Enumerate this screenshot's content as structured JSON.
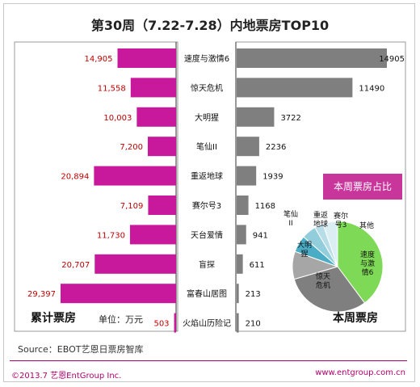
{
  "title": "第30周（7.22-7.28）内地票房TOP10",
  "left_caption": "累计票房",
  "unit": "单位：万元",
  "right_caption": "本周票房",
  "pie_title": "本周票房占比",
  "source": "Source：EBOT艺恩日票房智库",
  "copyright": "©2013.7 艺恩EntGroup Inc.",
  "website": "www.entgroup.com.cn",
  "colors": {
    "left_bar": "#c8189c",
    "right_bar": "#7f7f7f",
    "value_left": "#c00000",
    "footer": "#b0006e"
  },
  "chart_data": [
    {
      "type": "bar",
      "orientation": "horizontal",
      "caption": "累计票房",
      "categories": [
        "速度与激情6",
        "惊天危机",
        "大明猩",
        "笔仙II",
        "重返地球",
        "赛尔号3",
        "天台爱情",
        "盲探",
        "富春山居图",
        "火焰山历险记"
      ],
      "values": [
        14905,
        11558,
        10003,
        7200,
        20894,
        7109,
        11730,
        20707,
        29397,
        503
      ],
      "value_labels": [
        "14,905",
        "11,558",
        "10,003",
        "7,200",
        "20,894",
        "7,109",
        "11,730",
        "20,707",
        "29,397",
        "503"
      ]
    },
    {
      "type": "bar",
      "orientation": "horizontal",
      "caption": "本周票房",
      "categories": [
        "速度与激情6",
        "惊天危机",
        "大明猩",
        "笔仙II",
        "重返地球",
        "赛尔号3",
        "天台爱情",
        "盲探",
        "富春山居图",
        "火焰山历险记"
      ],
      "values": [
        14905,
        11490,
        3722,
        2236,
        1939,
        1168,
        941,
        611,
        213,
        210
      ],
      "value_labels": [
        "14905",
        "11490",
        "3722",
        "2236",
        "1939",
        "1168",
        "941",
        "611",
        "213",
        "210"
      ]
    },
    {
      "type": "pie",
      "title": "本周票房占比",
      "slices": [
        {
          "label": "速度与激情6",
          "value": 14905,
          "color": "#7ed957"
        },
        {
          "label": "惊天危机",
          "value": 11490,
          "color": "#7f7f7f"
        },
        {
          "label": "大明猩",
          "value": 3722,
          "color": "#a6a6a6"
        },
        {
          "label": "笔仙II",
          "value": 2236,
          "color": "#4bacc6"
        },
        {
          "label": "重返地球",
          "value": 1939,
          "color": "#92cddc"
        },
        {
          "label": "赛尔号3",
          "value": 1168,
          "color": "#b7dde8"
        },
        {
          "label": "其他",
          "value": 1975,
          "color": "#dbeef3"
        }
      ],
      "labels_shown": [
        "速度与激情6",
        "惊天危机",
        "大明猩",
        "笔仙II",
        "重返地球",
        "赛尔号3",
        "其他"
      ]
    }
  ]
}
